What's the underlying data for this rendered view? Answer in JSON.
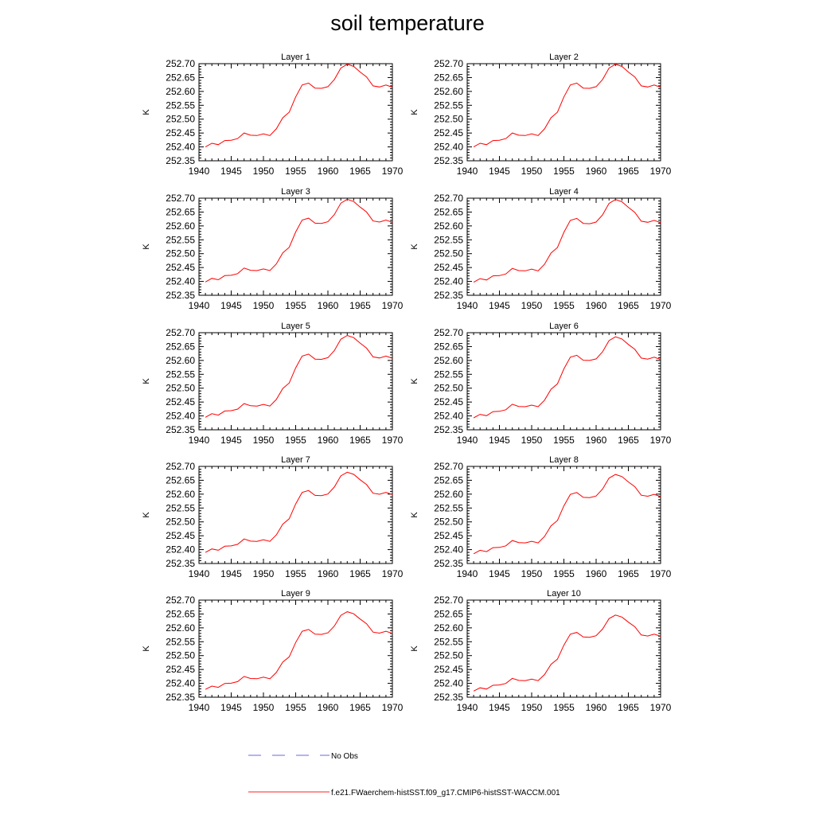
{
  "title": "soil temperature",
  "legend": {
    "obs_label": "No Obs",
    "model_label": "f.e21.FWaerchem-histSST.f09_g17.CMIP6-histSST-WACCM.001",
    "obs_color": "#6a6adf",
    "model_color": "#ff2020"
  },
  "colors": {
    "line": "#ff0000",
    "axis": "#000000"
  },
  "chart_data": {
    "type": "line",
    "grid": false,
    "xlim": [
      1940,
      1970
    ],
    "ylim": [
      252.35,
      252.7
    ],
    "xticks": [
      "1940",
      "1945",
      "1950",
      "1955",
      "1960",
      "1965",
      "1970"
    ],
    "yticks": [
      "252.35",
      "252.40",
      "252.45",
      "252.50",
      "252.55",
      "252.60",
      "252.65",
      "252.70"
    ],
    "ylabel": "K",
    "x": [
      1941,
      1942,
      1943,
      1944,
      1945,
      1946,
      1947,
      1948,
      1949,
      1950,
      1951,
      1952,
      1953,
      1954,
      1955,
      1956,
      1957,
      1958,
      1959,
      1960,
      1961,
      1962,
      1963,
      1964,
      1965,
      1966,
      1967,
      1968,
      1969,
      1970
    ],
    "base_values": [
      252.4,
      252.413,
      252.408,
      252.423,
      252.424,
      252.43,
      252.45,
      252.442,
      252.441,
      252.447,
      252.441,
      252.465,
      252.505,
      252.525,
      252.58,
      252.623,
      252.63,
      252.612,
      252.611,
      252.617,
      252.643,
      252.684,
      252.698,
      252.69,
      252.67,
      252.652,
      252.62,
      252.616,
      252.623,
      252.615
    ],
    "panels": [
      {
        "title": "Layer 1",
        "offset": 0.0,
        "scale": 1.0
      },
      {
        "title": "Layer 2",
        "offset": 0.0,
        "scale": 1.0
      },
      {
        "title": "Layer 3",
        "offset": -0.002,
        "scale": 1.0
      },
      {
        "title": "Layer 4",
        "offset": -0.003,
        "scale": 1.0
      },
      {
        "title": "Layer 5",
        "offset": -0.005,
        "scale": 0.99
      },
      {
        "title": "Layer 6",
        "offset": -0.007,
        "scale": 0.98
      },
      {
        "title": "Layer 7",
        "offset": -0.01,
        "scale": 0.97
      },
      {
        "title": "Layer 8",
        "offset": -0.015,
        "scale": 0.96
      },
      {
        "title": "Layer 9",
        "offset": -0.022,
        "scale": 0.94
      },
      {
        "title": "Layer 10",
        "offset": -0.028,
        "scale": 0.92
      }
    ]
  }
}
